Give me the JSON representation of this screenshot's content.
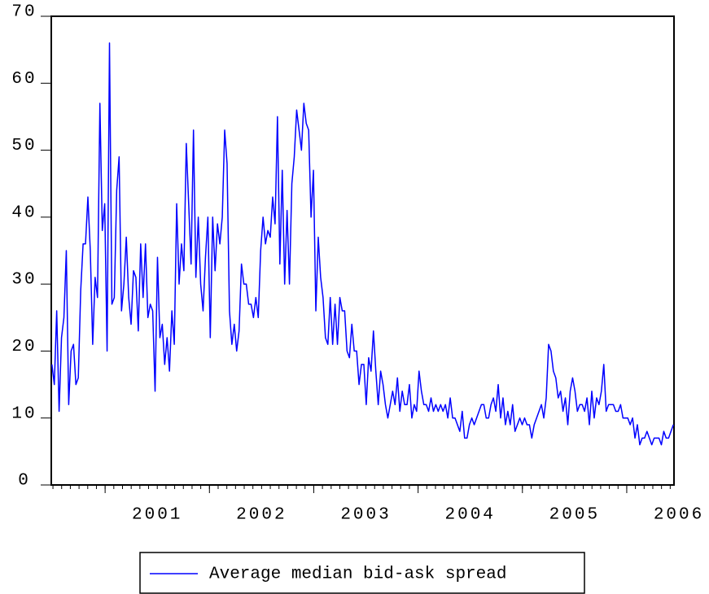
{
  "chart_data": {
    "type": "line",
    "x": [
      2000.49,
      2000.513,
      2000.536,
      2000.559,
      2000.582,
      2000.605,
      2000.628,
      2000.651,
      2000.674,
      2000.697,
      2000.72,
      2000.743,
      2000.766,
      2000.789,
      2000.812,
      2000.835,
      2000.858,
      2000.881,
      2000.904,
      2000.927,
      2000.95,
      2000.973,
      2000.996,
      2001.019,
      2001.042,
      2001.065,
      2001.088,
      2001.111,
      2001.134,
      2001.157,
      2001.18,
      2001.203,
      2001.226,
      2001.249,
      2001.272,
      2001.295,
      2001.318,
      2001.341,
      2001.364,
      2001.387,
      2001.41,
      2001.433,
      2001.456,
      2001.479,
      2001.502,
      2001.525,
      2001.548,
      2001.571,
      2001.594,
      2001.617,
      2001.64,
      2001.663,
      2001.686,
      2001.709,
      2001.732,
      2001.755,
      2001.778,
      2001.801,
      2001.824,
      2001.847,
      2001.87,
      2001.893,
      2001.916,
      2001.939,
      2001.962,
      2001.985,
      2002.008,
      2002.031,
      2002.054,
      2002.077,
      2002.1,
      2002.123,
      2002.146,
      2002.169,
      2002.192,
      2002.215,
      2002.238,
      2002.261,
      2002.284,
      2002.307,
      2002.33,
      2002.353,
      2002.376,
      2002.399,
      2002.422,
      2002.445,
      2002.468,
      2002.491,
      2002.514,
      2002.537,
      2002.56,
      2002.583,
      2002.606,
      2002.629,
      2002.652,
      2002.675,
      2002.698,
      2002.721,
      2002.744,
      2002.767,
      2002.79,
      2002.813,
      2002.836,
      2002.859,
      2002.882,
      2002.905,
      2002.928,
      2002.951,
      2002.974,
      2002.997,
      2003.02,
      2003.043,
      2003.066,
      2003.089,
      2003.112,
      2003.135,
      2003.158,
      2003.181,
      2003.204,
      2003.227,
      2003.25,
      2003.273,
      2003.296,
      2003.319,
      2003.342,
      2003.365,
      2003.388,
      2003.411,
      2003.434,
      2003.457,
      2003.48,
      2003.503,
      2003.526,
      2003.549,
      2003.572,
      2003.595,
      2003.618,
      2003.641,
      2003.664,
      2003.687,
      2003.71,
      2003.733,
      2003.756,
      2003.779,
      2003.802,
      2003.825,
      2003.848,
      2003.871,
      2003.894,
      2003.917,
      2003.94,
      2003.963,
      2003.986,
      2004.009,
      2004.032,
      2004.055,
      2004.078,
      2004.101,
      2004.124,
      2004.147,
      2004.17,
      2004.193,
      2004.216,
      2004.239,
      2004.262,
      2004.285,
      2004.308,
      2004.331,
      2004.354,
      2004.377,
      2004.4,
      2004.423,
      2004.446,
      2004.469,
      2004.492,
      2004.515,
      2004.538,
      2004.561,
      2004.584,
      2004.607,
      2004.63,
      2004.653,
      2004.676,
      2004.699,
      2004.722,
      2004.745,
      2004.768,
      2004.791,
      2004.814,
      2004.837,
      2004.86,
      2004.883,
      2004.906,
      2004.929,
      2004.952,
      2004.975,
      2004.998,
      2005.021,
      2005.044,
      2005.067,
      2005.09,
      2005.113,
      2005.136,
      2005.159,
      2005.182,
      2005.205,
      2005.228,
      2005.251,
      2005.274,
      2005.297,
      2005.32,
      2005.343,
      2005.366,
      2005.389,
      2005.412,
      2005.435,
      2005.458,
      2005.481,
      2005.504,
      2005.527,
      2005.55,
      2005.573,
      2005.596,
      2005.619,
      2005.642,
      2005.665,
      2005.688,
      2005.711,
      2005.734,
      2005.757,
      2005.78,
      2005.803,
      2005.826,
      2005.849,
      2005.872,
      2005.895,
      2005.918,
      2005.941,
      2005.964,
      2005.987,
      2006.01,
      2006.033,
      2006.056,
      2006.079,
      2006.102,
      2006.125,
      2006.148,
      2006.171,
      2006.194,
      2006.217,
      2006.24,
      2006.263,
      2006.286,
      2006.309,
      2006.332,
      2006.355,
      2006.378,
      2006.401,
      2006.424,
      2006.447
    ],
    "series": [
      {
        "name": "Average median bid-ask spread",
        "color": "#0000ff",
        "values": [
          18,
          15,
          26,
          11,
          22,
          25,
          35,
          12,
          20,
          21,
          15,
          16,
          29,
          36,
          36,
          43,
          35,
          21,
          31,
          28,
          57,
          38,
          42,
          20,
          66,
          27,
          28,
          44,
          49,
          26,
          30,
          37,
          28,
          24,
          32,
          31,
          23,
          36,
          28,
          36,
          25,
          27,
          26,
          14,
          34,
          22,
          24,
          18,
          22,
          17,
          26,
          21,
          42,
          30,
          36,
          32,
          51,
          42,
          33,
          53,
          31,
          40,
          30,
          26,
          34,
          40,
          22,
          40,
          32,
          39,
          36,
          40,
          53,
          48,
          26,
          21,
          24,
          20,
          23,
          33,
          30,
          30,
          27,
          27,
          25,
          28,
          25,
          35,
          40,
          36,
          38,
          37,
          43,
          39,
          55,
          33,
          47,
          30,
          41,
          30,
          45,
          49,
          56,
          53,
          50,
          57,
          54,
          53,
          40,
          47,
          26,
          37,
          31,
          28,
          22,
          21,
          28,
          21,
          27,
          21,
          28,
          26,
          26,
          20,
          19,
          24,
          20,
          20,
          15,
          18,
          18,
          12,
          19,
          17,
          23,
          17,
          12,
          17,
          15,
          12,
          10,
          12,
          14,
          12,
          16,
          11,
          14,
          12,
          12,
          15,
          10,
          12,
          11,
          17,
          14,
          12,
          12,
          11,
          13,
          11,
          12,
          11,
          12,
          11,
          12,
          10,
          13,
          10,
          10,
          9,
          8,
          11,
          7,
          7,
          9,
          10,
          9,
          10,
          11,
          12,
          12,
          10,
          10,
          12,
          13,
          11,
          15,
          10,
          13,
          9,
          11,
          9,
          12,
          8,
          9,
          10,
          9,
          10,
          9,
          9,
          7,
          9,
          10,
          11,
          12,
          10,
          13,
          21,
          20,
          17,
          16,
          13,
          14,
          11,
          13,
          9,
          14,
          16,
          14,
          11,
          12,
          12,
          11,
          13,
          9,
          14,
          10,
          13,
          12,
          14,
          18,
          11,
          12,
          12,
          12,
          11,
          11,
          12,
          10,
          10,
          10,
          9,
          10,
          7,
          9,
          6,
          7,
          7,
          8,
          7,
          6,
          7,
          7,
          7,
          6,
          8,
          7,
          7,
          8,
          9
        ]
      }
    ],
    "xlim": [
      2000.484,
      2006.453
    ],
    "xticks": [
      2001,
      2002,
      2003,
      2004,
      2005,
      2006
    ],
    "ylim": [
      0,
      70
    ],
    "yticks": [
      0,
      10,
      20,
      30,
      40,
      50,
      60,
      70
    ],
    "legend": "bottom"
  }
}
